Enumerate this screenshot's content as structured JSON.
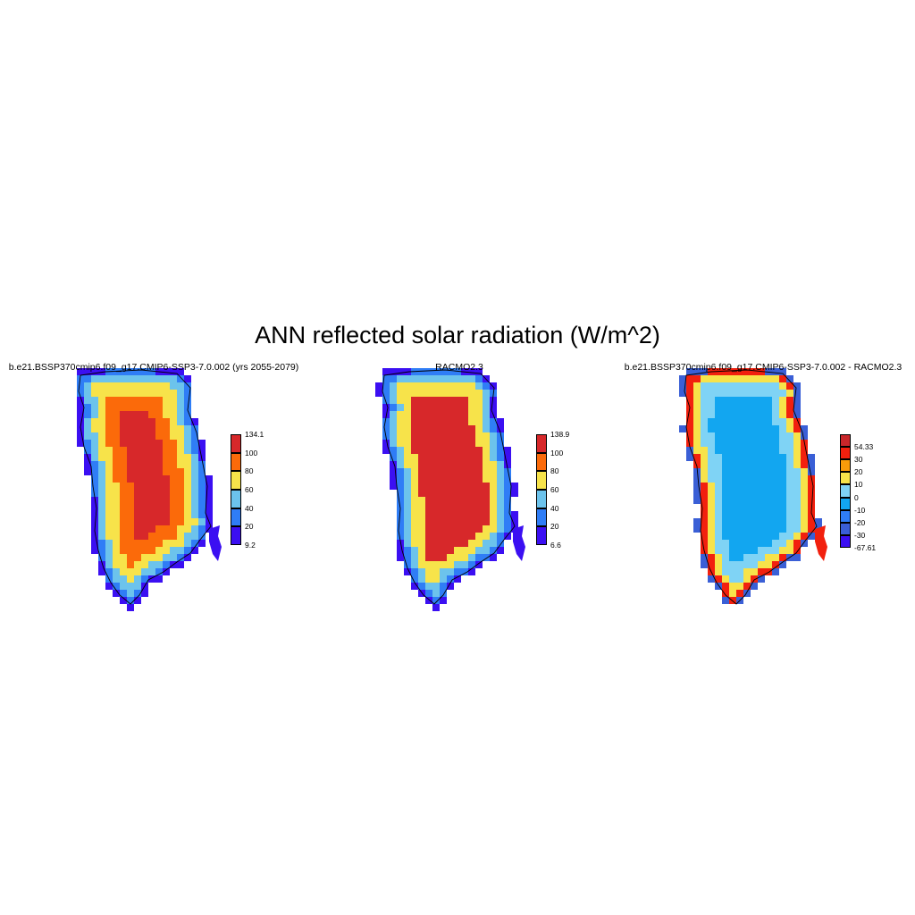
{
  "title": "ANN reflected solar radiation (W/m^2)",
  "panels": [
    {
      "id": "model",
      "title": "b.e21.BSSP370cmip6.f09_g17.CMIP6-SSP3-7.0.002 (yrs 2055-2079)",
      "colorbar": {
        "colors": [
          "#3b0ff2",
          "#2f7df6",
          "#6cc3ec",
          "#f7e34a",
          "#fb6a0a",
          "#d7282a"
        ],
        "labels": [
          "9.2",
          "20",
          "40",
          "60",
          "80",
          "100",
          "134.1"
        ]
      },
      "field": {
        "interior": "#d7282a",
        "ring1": "#fb6a0a",
        "ring2": "#f7e34a",
        "ring3": "#6cc3ec",
        "ring4": "#2f7df6",
        "ring5": "#3b0ff2"
      }
    },
    {
      "id": "obs",
      "title": "RACMO2.3",
      "colorbar": {
        "colors": [
          "#3b0ff2",
          "#2f7df6",
          "#6cc3ec",
          "#f7e34a",
          "#fb6a0a",
          "#d7282a"
        ],
        "labels": [
          "6.6",
          "20",
          "40",
          "60",
          "80",
          "100",
          "138.9"
        ]
      },
      "field": {
        "interior": "#d7282a",
        "ring1": "#d7282a",
        "ring2": "#f7e34a",
        "ring3": "#6cc3ec",
        "ring4": "#2f7df6",
        "ring5": "#3b0ff2"
      }
    },
    {
      "id": "diff",
      "title": "b.e21.BSSP370cmip6.f09_g17.CMIP6-SSP3-7.0.002 - RACMO2.3",
      "colorbar": {
        "colors": [
          "#3b0ff2",
          "#3a5fd6",
          "#2f7df6",
          "#12a6f0",
          "#7fd3f5",
          "#f7e34a",
          "#f99b0a",
          "#f2200e",
          "#c8262a"
        ],
        "labels": [
          "-67.61",
          "-30",
          "-20",
          "-10",
          "0",
          "10",
          "20",
          "30",
          "54.33"
        ]
      },
      "field": {
        "interior": "#12a6f0",
        "ring1": "#12a6f0",
        "ring2": "#7fd3f5",
        "ring3": "#f7e34a",
        "ring4": "#f2200e",
        "ring5": "#3a5fd6"
      }
    }
  ]
}
